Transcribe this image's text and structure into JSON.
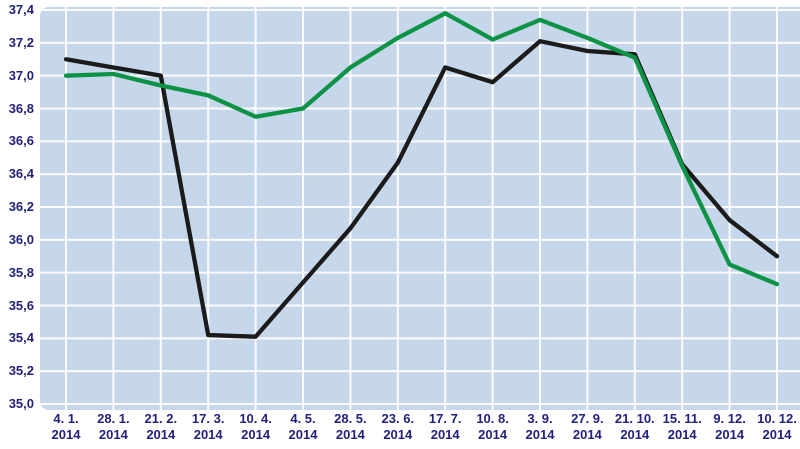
{
  "chart_data": {
    "type": "line",
    "title": "",
    "xlabel": "",
    "ylabel": "",
    "legend": "none",
    "grid": true,
    "ylim": [
      35.0,
      37.4
    ],
    "ytick_step": 0.2,
    "y_tick_labels": [
      "37,4",
      "37,2",
      "37,0",
      "36,8",
      "36,6",
      "36,4",
      "36,2",
      "36,0",
      "35,8",
      "35,6",
      "35,4",
      "35,2",
      "35,0"
    ],
    "categories": [
      {
        "date": "4. 1.",
        "year": "2014"
      },
      {
        "date": "28. 1.",
        "year": "2014"
      },
      {
        "date": "21. 2.",
        "year": "2014"
      },
      {
        "date": "17. 3.",
        "year": "2014"
      },
      {
        "date": "10. 4.",
        "year": "2014"
      },
      {
        "date": "4. 5.",
        "year": "2014"
      },
      {
        "date": "28. 5.",
        "year": "2014"
      },
      {
        "date": "23. 6.",
        "year": "2014"
      },
      {
        "date": "17. 7.",
        "year": "2014"
      },
      {
        "date": "10. 8.",
        "year": "2014"
      },
      {
        "date": "3. 9.",
        "year": "2014"
      },
      {
        "date": "27. 9.",
        "year": "2014"
      },
      {
        "date": "21. 10.",
        "year": "2014"
      },
      {
        "date": "15. 11.",
        "year": "2014"
      },
      {
        "date": "9. 12.",
        "year": "2014"
      },
      {
        "date": "10. 12.",
        "year": "2014"
      }
    ],
    "series": [
      {
        "name": "series-black",
        "color": "#1b1b1b",
        "values": [
          37.1,
          37.05,
          37.0,
          35.42,
          35.41,
          35.74,
          36.07,
          36.47,
          37.05,
          36.96,
          37.21,
          37.15,
          37.13,
          36.46,
          36.12,
          35.9
        ]
      },
      {
        "name": "series-green",
        "color": "#0e9346",
        "values": [
          37.0,
          37.01,
          36.94,
          36.88,
          36.75,
          36.8,
          37.05,
          37.23,
          37.38,
          37.22,
          37.34,
          37.23,
          37.11,
          36.45,
          35.85,
          35.73
        ]
      }
    ],
    "colors": {
      "plot_background": "#c7d7eb",
      "gridline": "#ffffff",
      "axis_text": "#22227c",
      "page_background": "#ffffff"
    }
  }
}
